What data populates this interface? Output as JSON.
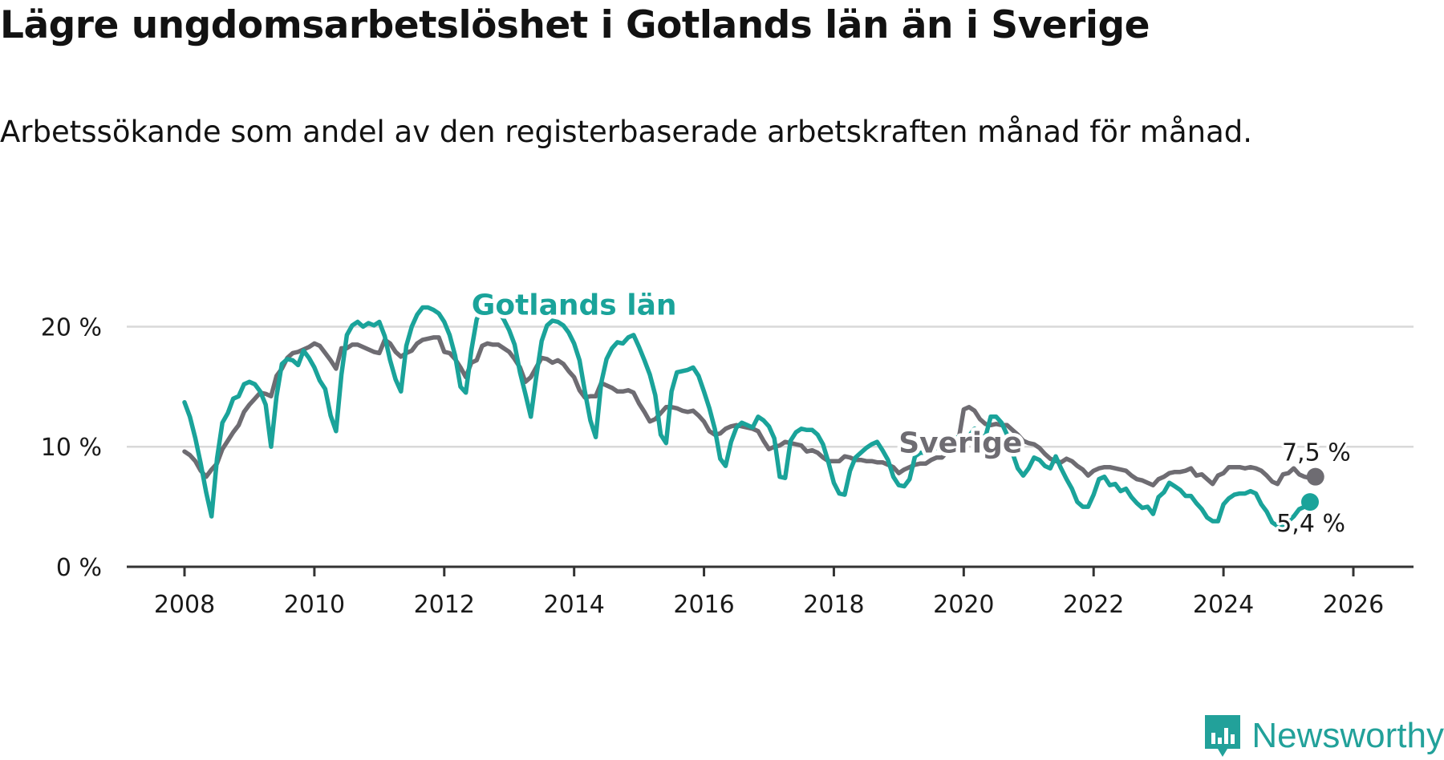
{
  "title": "Lägre ungdomsarbetslöshet i Gotlands län än i Sverige",
  "subtitle": "Arbetssökande som andel av den registerbaserade arbetskraften månad för månad.",
  "brand": "Newsworthy",
  "colors": {
    "gotland": "#1aa39a",
    "sverige": "#6e6c72",
    "grid": "#d9d9d9",
    "axis": "#333333"
  },
  "chart_data": {
    "type": "line",
    "x_ticks": [
      "2008",
      "2010",
      "2012",
      "2014",
      "2016",
      "2018",
      "2020",
      "2022",
      "2024",
      "2026"
    ],
    "y_ticks": [
      "0 %",
      "10 %",
      "20 %"
    ],
    "xlim": [
      2007.9,
      2026.9
    ],
    "ylim": [
      0,
      22.5
    ],
    "series": [
      {
        "name": "Gotlands län",
        "color_key": "gotland",
        "end_label": "5,4 %",
        "x_start": 2008.0,
        "step": 0.08333,
        "values": [
          13.7,
          12.5,
          10.7,
          8.6,
          6.2,
          4.2,
          9.0,
          12.0,
          12.8,
          14.0,
          14.2,
          15.2,
          15.4,
          15.2,
          14.6,
          13.5,
          10.0,
          14.2,
          16.9,
          17.3,
          17.2,
          16.8,
          18.0,
          17.4,
          16.6,
          15.5,
          14.8,
          12.6,
          11.3,
          16.0,
          19.3,
          20.1,
          20.4,
          20.0,
          20.3,
          20.1,
          20.4,
          19.2,
          17.2,
          15.6,
          14.6,
          18.4,
          20.0,
          21.0,
          21.6,
          21.6,
          21.4,
          21.1,
          20.4,
          19.3,
          17.6,
          15.0,
          14.5,
          18.0,
          20.6,
          21.6,
          22.0,
          21.8,
          21.3,
          20.6,
          19.7,
          18.5,
          16.2,
          14.4,
          12.5,
          15.8,
          18.8,
          20.1,
          20.5,
          20.4,
          20.1,
          19.5,
          18.6,
          17.2,
          14.6,
          12.2,
          10.8,
          15.3,
          17.3,
          18.2,
          18.7,
          18.6,
          19.1,
          19.3,
          18.3,
          17.2,
          16.0,
          14.3,
          11.0,
          10.3,
          14.6,
          16.2,
          16.3,
          16.4,
          16.6,
          15.9,
          14.6,
          13.2,
          11.5,
          9.0,
          8.4,
          10.4,
          11.6,
          12.0,
          11.8,
          11.6,
          12.5,
          12.2,
          11.7,
          10.7,
          7.5,
          7.4,
          10.5,
          11.2,
          11.5,
          11.4,
          11.4,
          11.0,
          10.2,
          8.7,
          7.0,
          6.1,
          6.0,
          8.0,
          9.1,
          9.5,
          9.9,
          10.2,
          10.4,
          9.7,
          8.9,
          7.5,
          6.8,
          6.7,
          7.3,
          9.2,
          9.5,
          9.5,
          9.7,
          9.9,
          10.5,
          10.4,
          10.7,
          10.8,
          10.6,
          10.9,
          11.5,
          11.0,
          10.8,
          12.5,
          12.5,
          12.0,
          11.0,
          9.5,
          8.2,
          7.6,
          8.2,
          9.1,
          8.9,
          8.4,
          8.2,
          9.2,
          8.2,
          7.3,
          6.5,
          5.4,
          5.0,
          5.0,
          6.0,
          7.3,
          7.5,
          6.8,
          6.9,
          6.3,
          6.5,
          5.8,
          5.3,
          4.9,
          5.0,
          4.4,
          5.8,
          6.2,
          7.0,
          6.7,
          6.4,
          5.9,
          5.9,
          5.3,
          4.8,
          4.1,
          3.8,
          3.8,
          5.2,
          5.7,
          6.0,
          6.1,
          6.1,
          6.3,
          6.1,
          5.2,
          4.6,
          3.7,
          3.4,
          3.5,
          3.8,
          4.2,
          4.8,
          5.0,
          5.4
        ]
      },
      {
        "name": "Sverige",
        "color_key": "sverige",
        "end_label": "7,5 %",
        "x_start": 2008.0,
        "step": 0.08333,
        "values": [
          9.6,
          9.3,
          8.8,
          8.0,
          7.5,
          8.1,
          8.6,
          9.8,
          10.5,
          11.2,
          11.8,
          12.9,
          13.5,
          14.0,
          14.5,
          14.4,
          14.2,
          15.9,
          16.5,
          17.4,
          17.8,
          17.9,
          18.1,
          18.3,
          18.6,
          18.4,
          17.8,
          17.2,
          16.5,
          18.2,
          18.2,
          18.5,
          18.5,
          18.3,
          18.1,
          17.9,
          17.8,
          18.9,
          18.6,
          17.9,
          17.5,
          17.8,
          18.0,
          18.6,
          18.9,
          19.0,
          19.1,
          19.1,
          17.9,
          17.8,
          17.3,
          16.6,
          15.8,
          17.0,
          17.2,
          18.4,
          18.6,
          18.5,
          18.5,
          18.2,
          17.9,
          17.3,
          16.6,
          15.4,
          15.8,
          16.6,
          17.4,
          17.3,
          17.0,
          17.2,
          16.9,
          16.3,
          15.8,
          14.7,
          14.1,
          14.2,
          14.2,
          15.3,
          15.1,
          14.9,
          14.6,
          14.6,
          14.7,
          14.5,
          13.6,
          12.9,
          12.1,
          12.3,
          12.8,
          13.3,
          13.3,
          13.2,
          13.0,
          12.9,
          13.0,
          12.6,
          12.1,
          11.3,
          11.0,
          11.1,
          11.5,
          11.7,
          11.8,
          11.7,
          11.6,
          11.5,
          11.3,
          10.5,
          9.8,
          10.0,
          10.1,
          10.4,
          10.3,
          10.2,
          10.1,
          9.6,
          9.7,
          9.5,
          9.1,
          8.8,
          8.8,
          8.8,
          9.2,
          9.1,
          8.9,
          8.9,
          8.8,
          8.8,
          8.7,
          8.7,
          8.5,
          8.3,
          7.8,
          8.1,
          8.3,
          8.5,
          8.6,
          8.6,
          8.9,
          9.1,
          9.1,
          9.6,
          9.6,
          10.4,
          13.1,
          13.3,
          13.0,
          12.3,
          11.9,
          11.8,
          11.9,
          11.8,
          11.8,
          11.4,
          11.0,
          10.5,
          10.3,
          10.2,
          9.9,
          9.4,
          9.0,
          8.8,
          8.7,
          9.0,
          8.8,
          8.4,
          8.1,
          7.6,
          8.0,
          8.2,
          8.3,
          8.3,
          8.2,
          8.1,
          8.0,
          7.6,
          7.3,
          7.2,
          7.0,
          6.8,
          7.3,
          7.5,
          7.8,
          7.9,
          7.9,
          8.0,
          8.2,
          7.6,
          7.7,
          7.3,
          6.9,
          7.6,
          7.8,
          8.3,
          8.3,
          8.3,
          8.2,
          8.3,
          8.2,
          8.0,
          7.6,
          7.1,
          6.9,
          7.7,
          7.8,
          8.2,
          7.7,
          7.5,
          7.4,
          7.5
        ]
      }
    ],
    "series_labels": [
      {
        "text": "Gotlands län",
        "x": 2014.0,
        "y": 21.0,
        "color_key": "gotland"
      },
      {
        "text": "Sverige",
        "x": 2019.95,
        "y": 9.5,
        "color_key": "sverige"
      }
    ]
  }
}
